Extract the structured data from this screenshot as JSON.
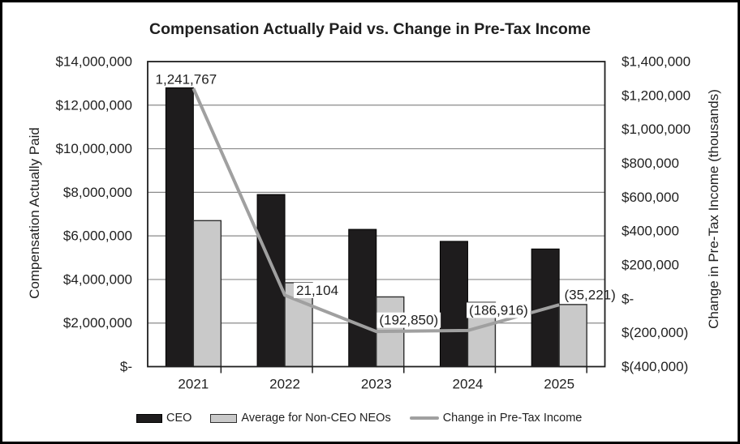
{
  "title": "Compensation Actually Paid vs. Change in Pre-Tax Income",
  "chart_data": {
    "type": "combo",
    "subtype": "grouped-bar-with-line",
    "categories": [
      "2021",
      "2022",
      "2023",
      "2024",
      "2025"
    ],
    "series": [
      {
        "name": "CEO",
        "type": "bar",
        "axis": "left",
        "color": "#1e1c1d",
        "values": [
          12800000,
          7900000,
          6300000,
          5750000,
          5400000
        ]
      },
      {
        "name": "Average for Non-CEO NEOs",
        "type": "bar",
        "axis": "left",
        "color": "#c9c9c9",
        "border_color": "#2f2f2f",
        "values": [
          6700000,
          3850000,
          3200000,
          2950000,
          2850000
        ]
      },
      {
        "name": "Change in Pre-Tax Income",
        "type": "line",
        "axis": "right",
        "color": "#a0a0a0",
        "values": [
          1241767,
          21104,
          -192850,
          -186916,
          -35221
        ],
        "data_labels": [
          "1,241,767",
          "21,104",
          "(192,850)",
          "(186,916)",
          "(35,221)"
        ]
      }
    ],
    "left_axis": {
      "title": "Compensation Actually Paid",
      "min": 0,
      "max": 14000000,
      "step": 2000000,
      "tick_labels": [
        "$14,000,000",
        "$12,000,000",
        "$10,000,000",
        "$8,000,000",
        "$6,000,000",
        "$4,000,000",
        "$2,000,000",
        "$-"
      ]
    },
    "right_axis": {
      "title": "Change in Pre-Tax Income (thousands)",
      "min": -400000,
      "max": 1400000,
      "step": 200000,
      "tick_labels": [
        "$1,400,000",
        "$1,200,000",
        "$1,000,000",
        "$800,000",
        "$600,000",
        "$400,000",
        "$200,000",
        "$-",
        "$(200,000)",
        "$(400,000)"
      ]
    },
    "grid": true,
    "legend_position": "bottom"
  },
  "legend": {
    "items": [
      {
        "label": "CEO",
        "swatch": "bar-black"
      },
      {
        "label": "Average for Non-CEO NEOs",
        "swatch": "bar-gray"
      },
      {
        "label": "Change in Pre-Tax Income",
        "swatch": "line-gray"
      }
    ]
  },
  "colors": {
    "ceo_bar": "#1e1c1d",
    "neo_bar_fill": "#c9c9c9",
    "neo_bar_border": "#2f2f2f",
    "line": "#a0a0a0",
    "gridline": "#8a8a8a",
    "plot_border": "#1f1f1f",
    "text": "#1f1f1f",
    "background": "#ffffff",
    "outer_border": "#000000"
  }
}
